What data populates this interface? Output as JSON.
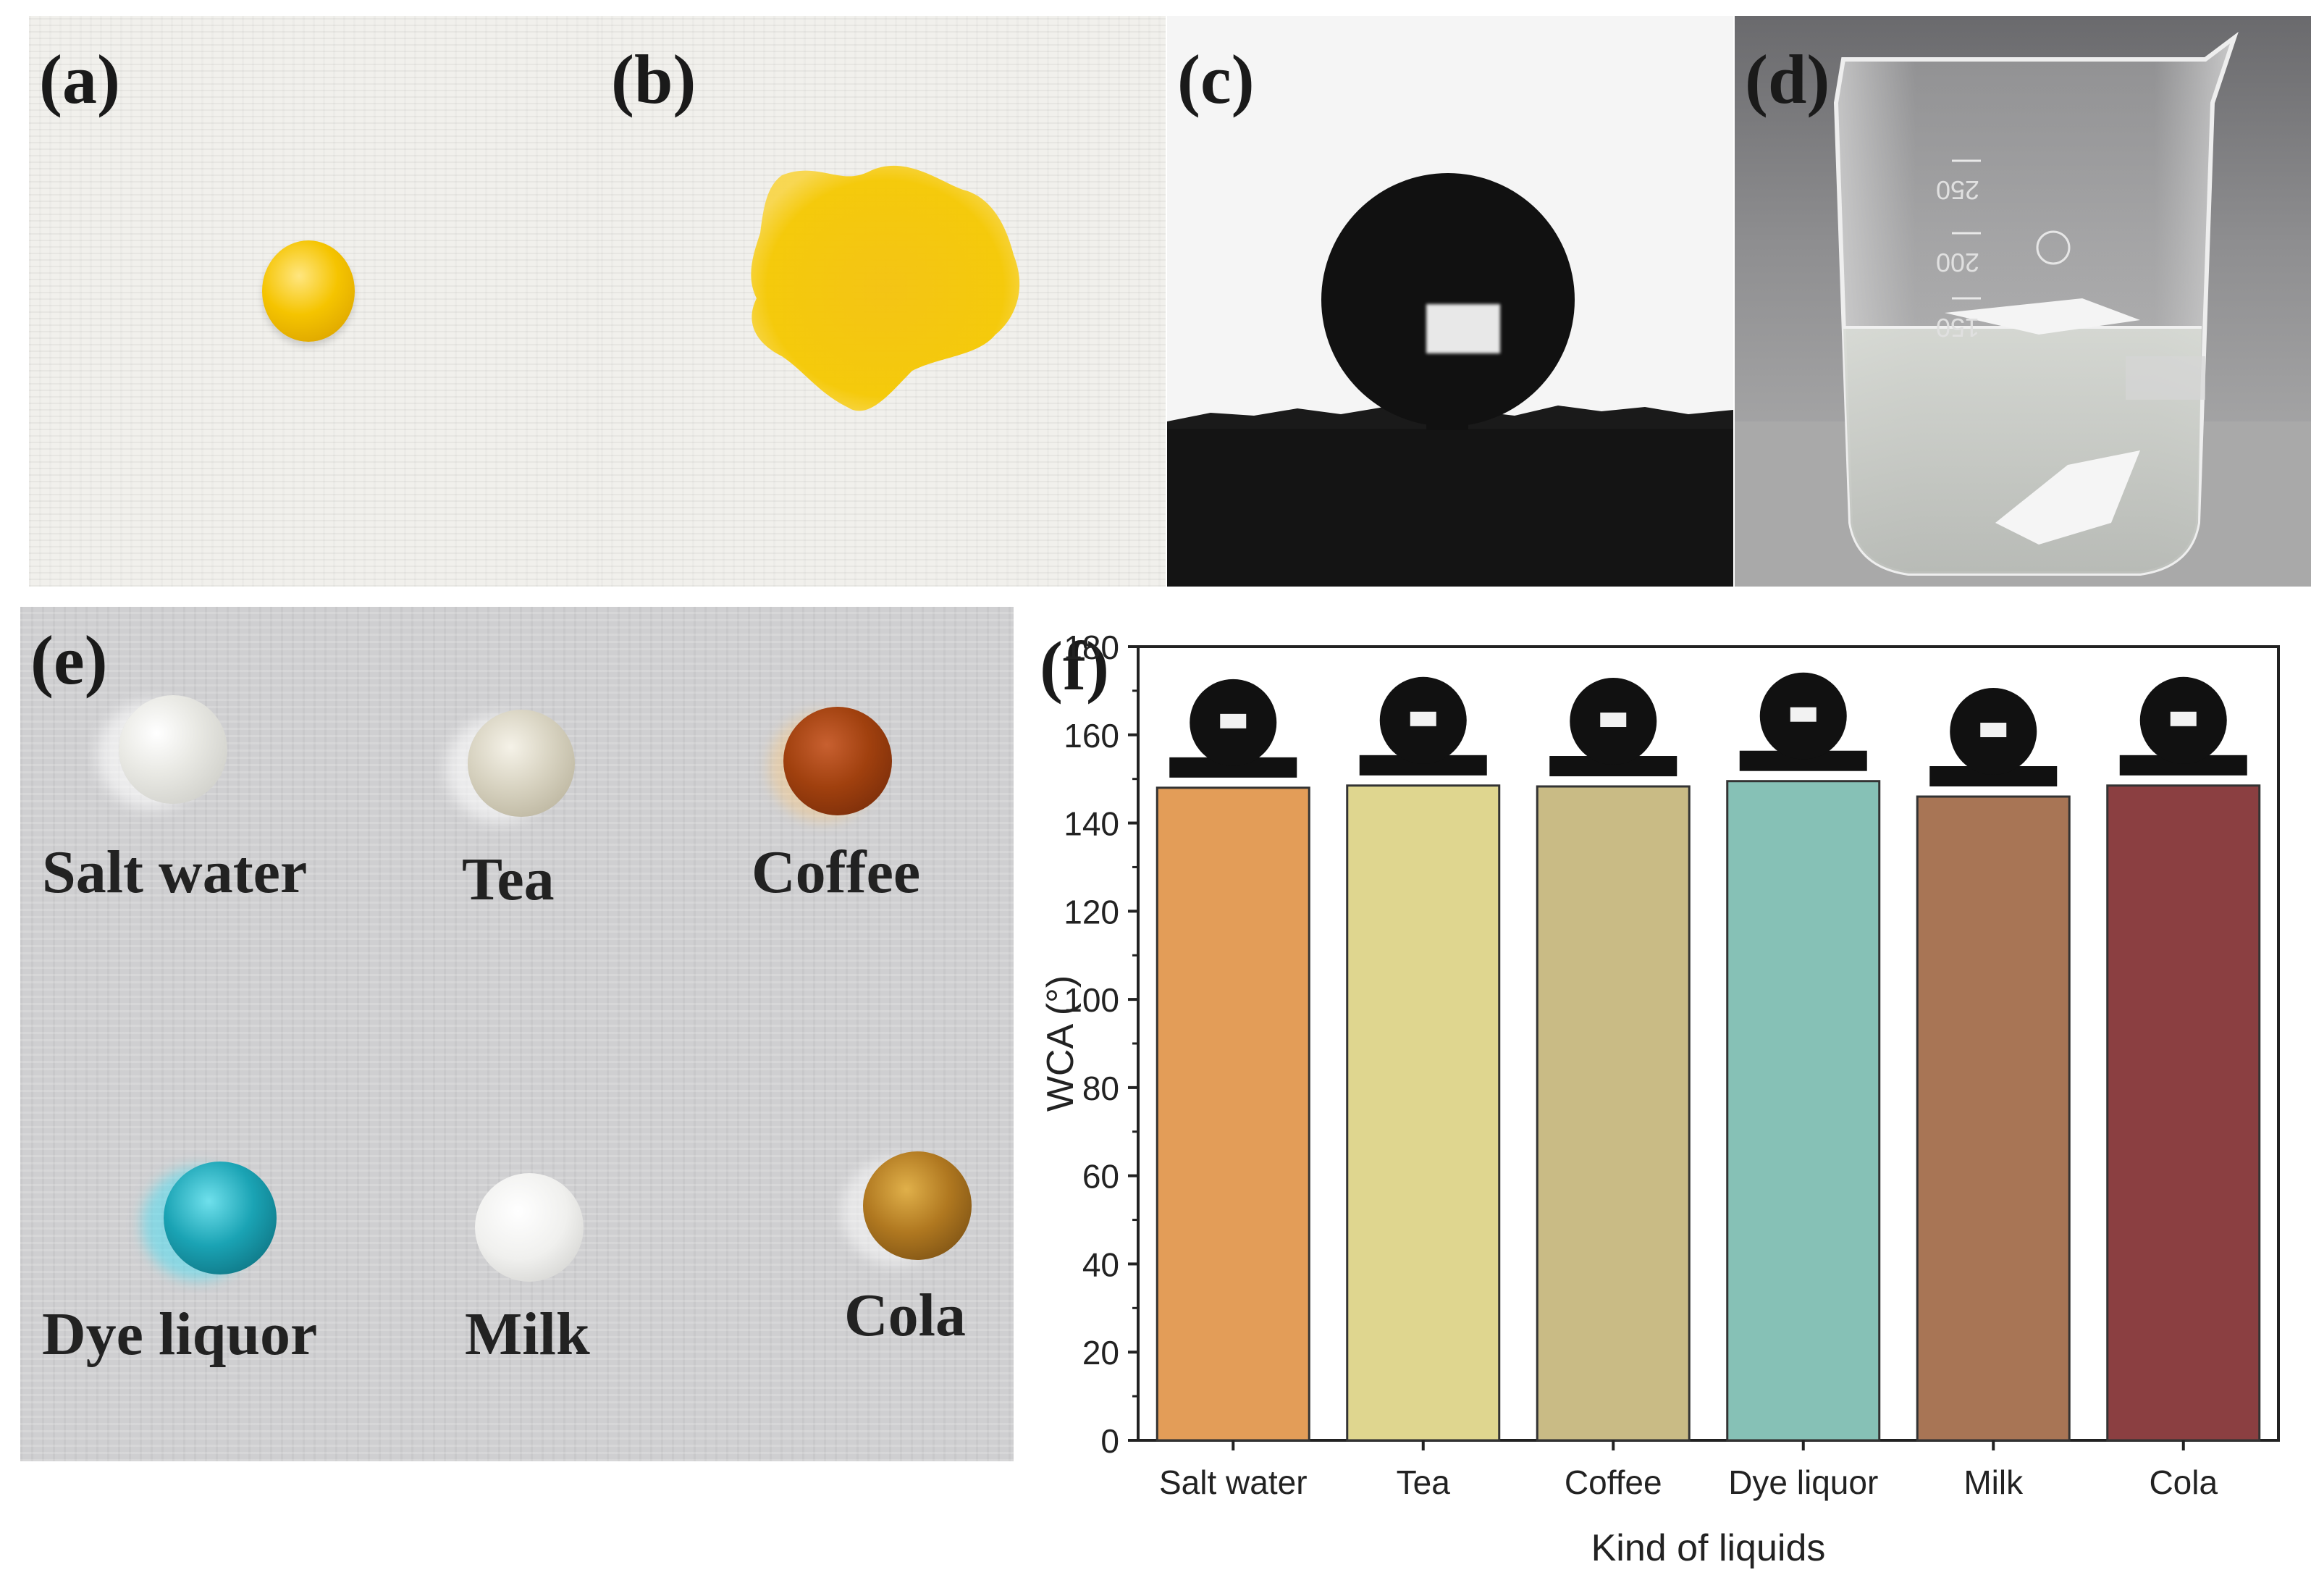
{
  "panels": {
    "a": {
      "label": "(a)",
      "drop_color": "#f3c000"
    },
    "b": {
      "label": "(b)",
      "stain_color": "#f2c400"
    },
    "c": {
      "label": "(c)"
    },
    "d": {
      "label": "(d)",
      "beaker_marks": [
        "250",
        "200",
        "150"
      ]
    },
    "e": {
      "label": "(e)",
      "drops": [
        {
          "name": "Salt water",
          "color": "#e6e6e0"
        },
        {
          "name": "Tea",
          "color": "#d8d4c4"
        },
        {
          "name": "Coffee",
          "color": "#a04010"
        },
        {
          "name": "Dye liquor",
          "color": "#1aa3b4"
        },
        {
          "name": "Milk",
          "color": "#ececea"
        },
        {
          "name": "Cola",
          "color": "#b07820"
        }
      ]
    },
    "f": {
      "label": "(f)"
    }
  },
  "chart_data": {
    "type": "bar",
    "categories": [
      "Salt water",
      "Tea",
      "Coffee",
      "Dye liquor",
      "Milk",
      "Cola"
    ],
    "values": [
      148,
      148.5,
      148.3,
      149.5,
      146,
      148.5
    ],
    "colors": [
      "#e39d58",
      "#dfd68f",
      "#c9bb85",
      "#86c1b6",
      "#a87555",
      "#8b3f41"
    ],
    "xlabel": "Kind of liquids",
    "ylabel": "WCA (°)",
    "ylim": [
      0,
      180
    ],
    "yticks": [
      0,
      20,
      40,
      60,
      80,
      100,
      120,
      140,
      160,
      180
    ],
    "grid": false,
    "droplet_insets": true
  }
}
